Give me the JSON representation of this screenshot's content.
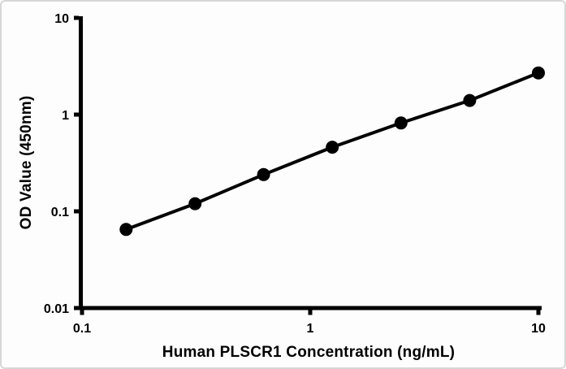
{
  "figure": {
    "background_color": "#fdfdfd",
    "border_color": "#d7d7d7"
  },
  "chart_data": {
    "type": "line",
    "title": "",
    "xlabel": "Human PLSCR1 Concentration (ng/mL)",
    "ylabel": "OD Value (450nm)",
    "x_scale": "log",
    "y_scale": "log",
    "xlim": [
      0.1,
      10
    ],
    "ylim": [
      0.01,
      10
    ],
    "grid": false,
    "legend_position": "none",
    "axis_color": "#000000",
    "x_ticks": [
      {
        "value": 0.1,
        "label": "0.1"
      },
      {
        "value": 1,
        "label": "1"
      },
      {
        "value": 10,
        "label": "10"
      }
    ],
    "y_ticks": [
      {
        "value": 0.01,
        "label": "0.01"
      },
      {
        "value": 0.1,
        "label": "0.1"
      },
      {
        "value": 1,
        "label": "1"
      },
      {
        "value": 10,
        "label": "10"
      }
    ],
    "series": [
      {
        "color": "#000000",
        "marker": "filled-circle",
        "x": [
          0.156,
          0.313,
          0.625,
          1.25,
          2.5,
          5,
          10
        ],
        "y": [
          0.065,
          0.12,
          0.24,
          0.46,
          0.82,
          1.4,
          2.7
        ]
      }
    ]
  }
}
